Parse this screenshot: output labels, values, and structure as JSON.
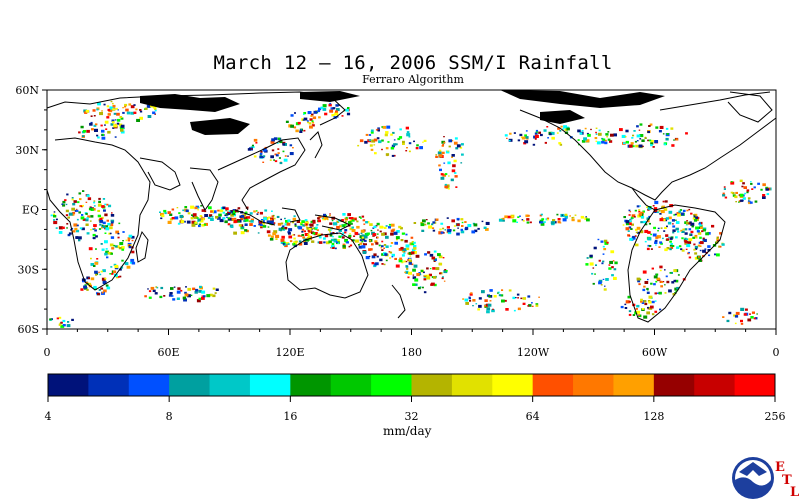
{
  "title": "March 12 – 16, 2006 SSM/I Rainfall",
  "subtitle": "Ferraro Algorithm",
  "map": {
    "lat_labels": [
      "60N",
      "30N",
      "EQ",
      "30S",
      "60S"
    ],
    "lon_labels": [
      "0",
      "60E",
      "120E",
      "180",
      "120W",
      "60W",
      "0"
    ],
    "lat_range": [
      -60,
      60
    ],
    "lon_range": [
      0,
      360
    ],
    "land_color": "#ffffff",
    "coast_color": "#000000",
    "ice_mask_color": "#000000"
  },
  "colorbar": {
    "colors": [
      "#00127a",
      "#0030b8",
      "#0050ff",
      "#00a0a0",
      "#00c8c8",
      "#00ffff",
      "#009600",
      "#00c800",
      "#00ff00",
      "#b4b400",
      "#e1e100",
      "#ffff00",
      "#ff5000",
      "#ff7800",
      "#ffa000",
      "#960000",
      "#c80000",
      "#ff0000"
    ],
    "tick_labels": [
      "4",
      "8",
      "16",
      "32",
      "64",
      "128",
      "256"
    ],
    "unit": "mm/day"
  },
  "logo": {
    "name": "NOAA",
    "letters": [
      "E",
      "T",
      "L"
    ]
  }
}
